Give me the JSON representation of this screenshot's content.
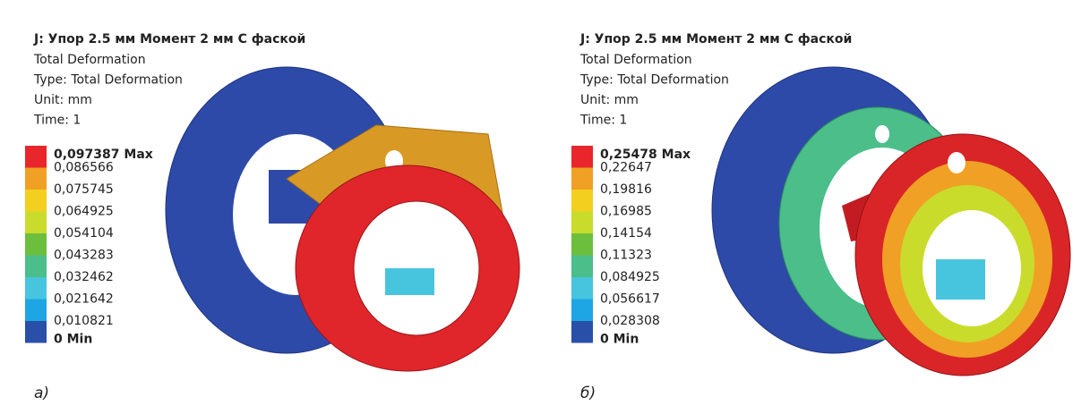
{
  "panels": [
    {
      "title": "J: Упор 2.5 мм Момент 2 мм С фаской",
      "info": [
        "Total Deformation",
        "Type: Total Deformation",
        "Unit: mm",
        "Time: 1"
      ],
      "legend": {
        "labels": [
          "0,097387 Max",
          "0,086566",
          "0,075745",
          "0,064925",
          "0,054104",
          "0,043283",
          "0,032462",
          "0,021642",
          "0,010821",
          "0 Min"
        ],
        "colors": [
          "#e8262b",
          "#f0a024",
          "#f3cf1f",
          "#c9dc2c",
          "#6cbf3c",
          "#4bbe8a",
          "#47c5df",
          "#1da6e3",
          "#2a4fa9"
        ]
      },
      "caption": "а)"
    },
    {
      "title": "J: Упор 2.5 мм Момент 2 мм С фаской",
      "info": [
        "Total Deformation",
        "Type: Total Deformation",
        "Unit: mm",
        "Time: 1"
      ],
      "legend": {
        "labels": [
          "0,25478 Max",
          "0,22647",
          "0,19816",
          "0,16985",
          "0,14154",
          "0,11323",
          "0,084925",
          "0,056617",
          "0,028308",
          "0 Min"
        ],
        "colors": [
          "#e8262b",
          "#f0a024",
          "#f3cf1f",
          "#c9dc2c",
          "#6cbf3c",
          "#4bbe8a",
          "#47c5df",
          "#1da6e3",
          "#2a4fa9"
        ]
      },
      "caption": "б)"
    }
  ]
}
